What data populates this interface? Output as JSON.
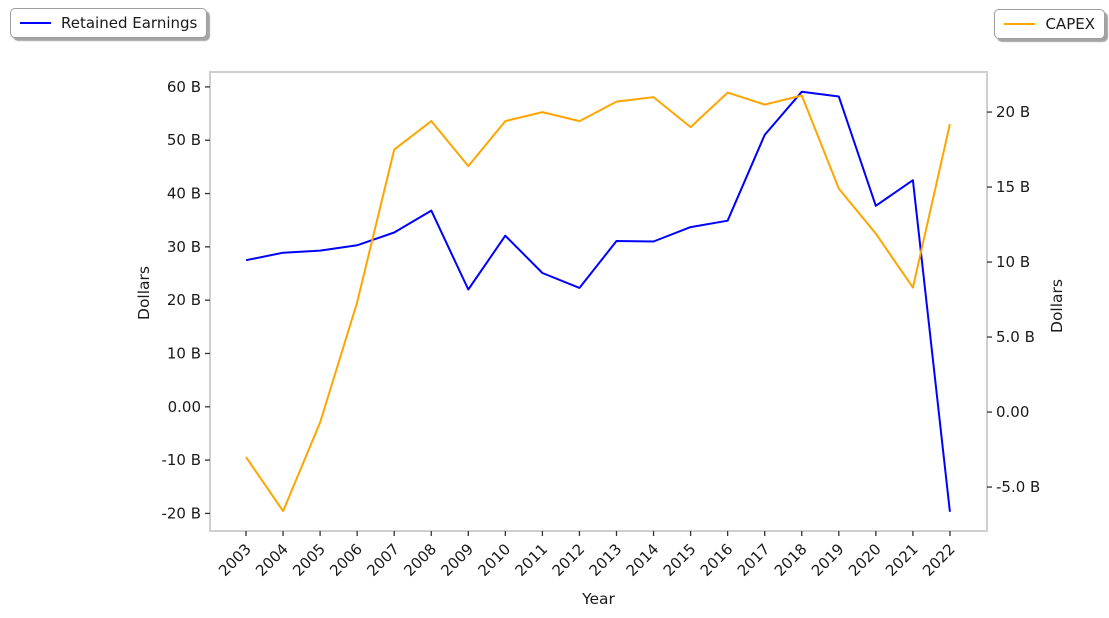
{
  "legend_left": {
    "label": "Retained Earnings"
  },
  "legend_right": {
    "label": "CAPEX"
  },
  "colors": {
    "retained_earnings": "#0000ff",
    "capex": "#ffa500",
    "plot_border": "#cfcfcf",
    "text": "#1a1a1a",
    "tick": "#333333"
  },
  "chart_data": {
    "type": "line",
    "title": "",
    "xlabel": "Year",
    "ylabel_left": "Dollars",
    "ylabel_right": "Dollars",
    "grid": false,
    "legend_position": "left legend top-left, right legend top-right",
    "x_tick_labels": [
      "2003",
      "2004",
      "2005",
      "2006",
      "2007",
      "2008",
      "2009",
      "2010",
      "2011",
      "2012",
      "2013",
      "2014",
      "2015",
      "2016",
      "2017",
      "2018",
      "2019",
      "2020",
      "2021",
      "2022"
    ],
    "series": [
      {
        "name": "Retained Earnings",
        "axis": "left",
        "color": "#0000ff",
        "values": [
          27.5,
          28.9,
          29.3,
          30.3,
          32.7,
          36.8,
          22.0,
          32.1,
          25.1,
          22.3,
          31.1,
          31.0,
          33.7,
          34.9,
          51.0,
          59.1,
          58.2,
          37.7,
          42.5,
          -19.7
        ]
      },
      {
        "name": "CAPEX",
        "axis": "right",
        "color": "#ffa500",
        "values": [
          -3.0,
          -6.6,
          -0.7,
          7.3,
          17.5,
          19.4,
          16.4,
          19.4,
          20.0,
          19.4,
          20.7,
          21.0,
          19.0,
          21.3,
          20.5,
          21.1,
          14.9,
          11.9,
          8.3,
          19.2
        ]
      }
    ],
    "left_axis": {
      "units": "billions of dollars",
      "range": [
        -23.3,
        62.8
      ],
      "tick_values": [
        60,
        50,
        40,
        30,
        20,
        10,
        0,
        -10,
        -20
      ],
      "tick_labels": [
        "60 B",
        "50 B",
        "40 B",
        "30 B",
        "20 B",
        "10 B",
        "0.00",
        "-10 B",
        "-20 B"
      ]
    },
    "right_axis": {
      "units": "billions of dollars",
      "range": [
        -7.93,
        22.67
      ],
      "tick_values": [
        20,
        15,
        10,
        5,
        0,
        -5
      ],
      "tick_labels": [
        "20 B",
        "15 B",
        "10 B",
        "5.0 B",
        "0.00",
        "-5.0 B"
      ]
    }
  }
}
